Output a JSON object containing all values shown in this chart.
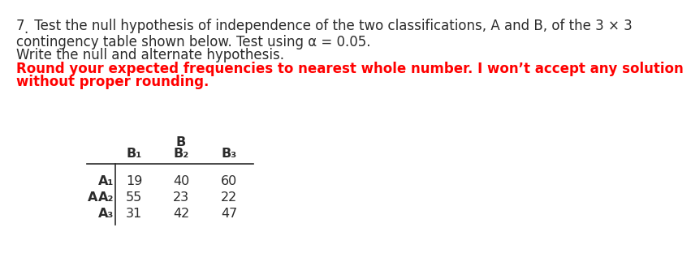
{
  "line1_num": "7",
  "line1_dot": ".",
  "line1_rest": " Test the null hypothesis of independence of the two classifications, A and B, of the 3 × 3",
  "line2": "contingency table shown below. Test using α = 0.05.",
  "line3": "Write the null and alternate hypothesis.",
  "line4": "Round your expected frequencies to nearest whole number. I won’t accept any solution",
  "line5": "without proper rounding.",
  "B_header": "B",
  "col_headers": [
    "B₁",
    "B₂",
    "B₃"
  ],
  "row_label_A": "A",
  "row_headers": [
    "A₁",
    "A₂",
    "A₃"
  ],
  "table_data": [
    [
      19,
      40,
      60
    ],
    [
      55,
      23,
      22
    ],
    [
      31,
      42,
      47
    ]
  ],
  "text_color_black": "#2b2b2b",
  "text_color_red": "#FF0000",
  "background_color": "#ffffff",
  "fs_main": 12.0,
  "fs_table": 11.5
}
